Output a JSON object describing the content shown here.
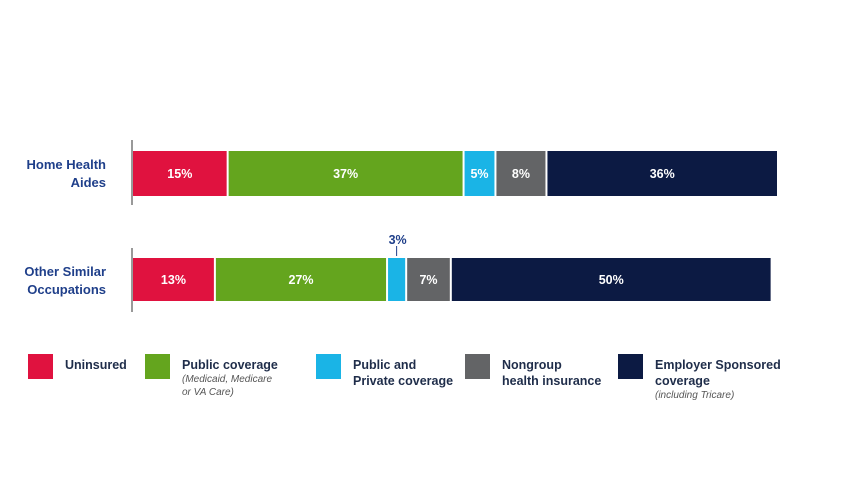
{
  "chart_data": {
    "type": "bar",
    "orientation": "horizontal",
    "stacked": true,
    "categories": [
      "Home Health\nAides",
      "Other Similar\nOccupations"
    ],
    "series": [
      {
        "name": "Uninsured",
        "values": [
          15,
          13
        ],
        "color": "#e0123f"
      },
      {
        "name": "Public coverage",
        "note": "(Medicaid, Medicare\nor VA Care)",
        "values": [
          37,
          27
        ],
        "color": "#64a51e"
      },
      {
        "name": "Public and\nPrivate coverage",
        "values": [
          5,
          3
        ],
        "color": "#1ab4e6"
      },
      {
        "name": "Nongroup\nhealth insurance",
        "values": [
          8,
          7
        ],
        "color": "#636466"
      },
      {
        "name": "Employer Sponsored\ncoverage",
        "note": "(including Tricare)",
        "values": [
          36,
          50
        ],
        "color": "#0c1a43"
      }
    ],
    "data_labels": [
      [
        "15%",
        "37%",
        "5%",
        "8%",
        "36%"
      ],
      [
        "13%",
        "27%",
        "3%",
        "7%",
        "50%"
      ]
    ],
    "xlim": [
      0,
      101
    ],
    "grid": false,
    "legend_position": "bottom"
  }
}
